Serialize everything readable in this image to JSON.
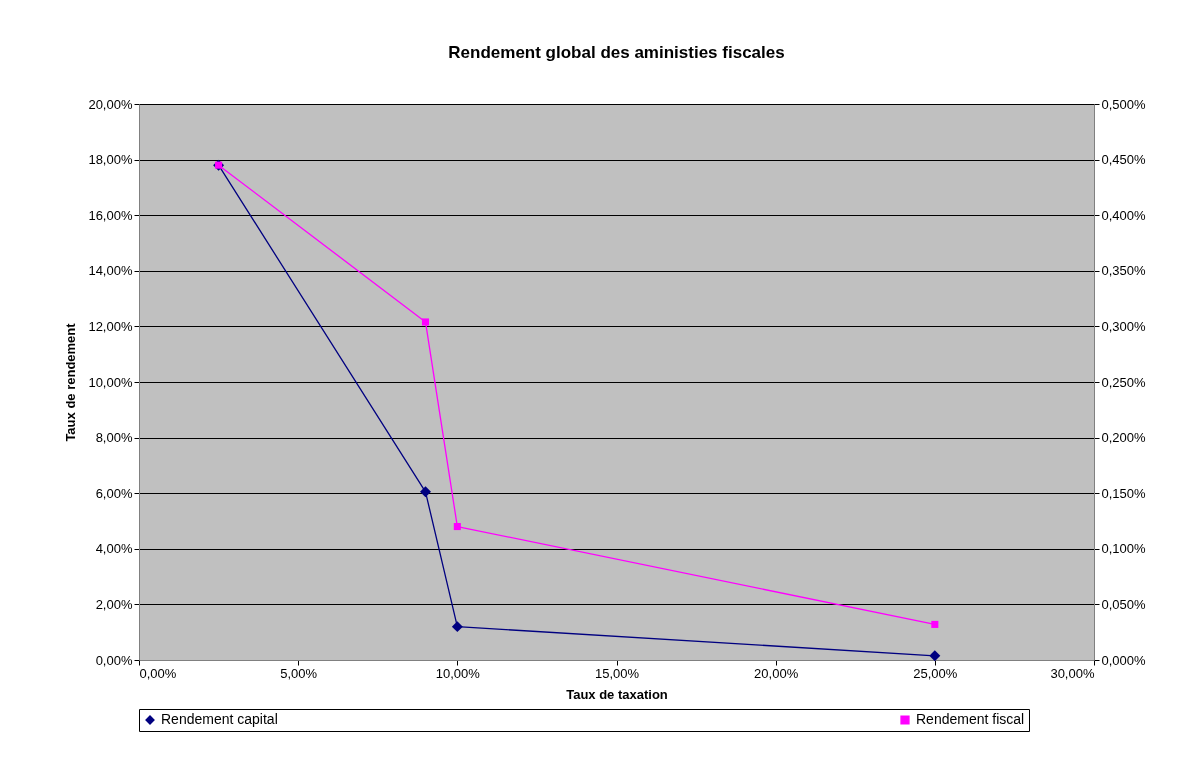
{
  "chart_data": {
    "type": "line",
    "title": "Rendement global des aministies fiscales",
    "xlabel": "Taux de taxation",
    "ylabel": "Taux de rendement",
    "xlim": [
      0,
      30
    ],
    "xticks": [
      {
        "value": 0,
        "label": "0,00%"
      },
      {
        "value": 5,
        "label": "5,00%"
      },
      {
        "value": 10,
        "label": "10,00%"
      },
      {
        "value": 15,
        "label": "15,00%"
      },
      {
        "value": 20,
        "label": "20,00%"
      },
      {
        "value": 25,
        "label": "25,00%"
      },
      {
        "value": 30,
        "label": "30,00%"
      }
    ],
    "ylim": [
      0,
      20
    ],
    "yticks": [
      {
        "value": 0,
        "label": "0,00%"
      },
      {
        "value": 2,
        "label": "2,00%"
      },
      {
        "value": 4,
        "label": "4,00%"
      },
      {
        "value": 6,
        "label": "6,00%"
      },
      {
        "value": 8,
        "label": "8,00%"
      },
      {
        "value": 10,
        "label": "10,00%"
      },
      {
        "value": 12,
        "label": "12,00%"
      },
      {
        "value": 14,
        "label": "14,00%"
      },
      {
        "value": 16,
        "label": "16,00%"
      },
      {
        "value": 18,
        "label": "18,00%"
      },
      {
        "value": 20,
        "label": "20,00%"
      }
    ],
    "y2lim": [
      0,
      0.5
    ],
    "y2ticks": [
      {
        "value": 0,
        "label": "0,000%"
      },
      {
        "value": 0.05,
        "label": "0,050%"
      },
      {
        "value": 0.1,
        "label": "0,100%"
      },
      {
        "value": 0.15,
        "label": "0,150%"
      },
      {
        "value": 0.2,
        "label": "0,200%"
      },
      {
        "value": 0.25,
        "label": "0,250%"
      },
      {
        "value": 0.3,
        "label": "0,300%"
      },
      {
        "value": 0.35,
        "label": "0,350%"
      },
      {
        "value": 0.4,
        "label": "0,400%"
      },
      {
        "value": 0.45,
        "label": "0,450%"
      },
      {
        "value": 0.5,
        "label": "0,500%"
      }
    ],
    "x": [
      2.5,
      9,
      10,
      25
    ],
    "series": [
      {
        "name": "Rendement capital",
        "color": "#000080",
        "marker": "diamond",
        "values": [
          17.8,
          6.05,
          1.2,
          0.15
        ]
      },
      {
        "name": "Rendement fiscal",
        "color": "#ff00ff",
        "marker": "square",
        "axis": "y2",
        "values": [
          0.445,
          0.304,
          0.12,
          0.032
        ]
      }
    ],
    "grid": "y",
    "legend": "bottom",
    "line_style": "solid"
  }
}
